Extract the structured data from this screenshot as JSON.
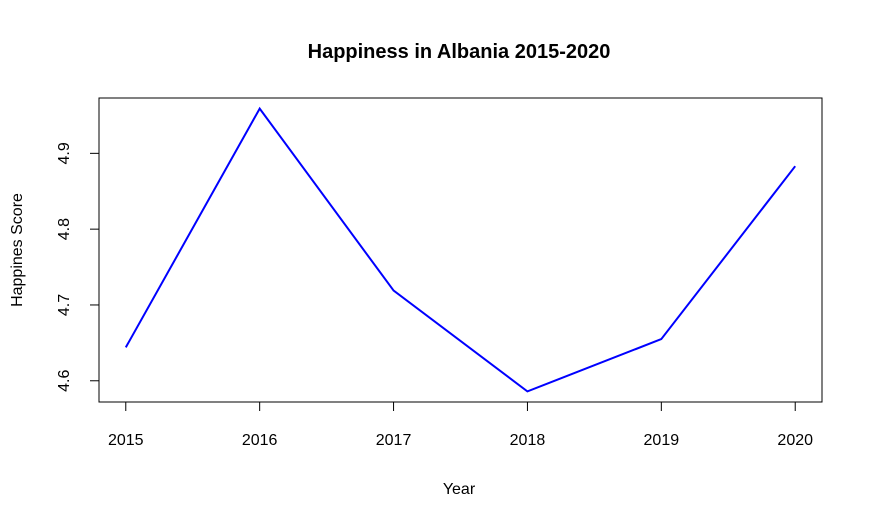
{
  "chart_data": {
    "type": "line",
    "title": "Happiness in Albania 2015-2020",
    "xlabel": "Year",
    "ylabel": "Happines Score",
    "x": [
      2015,
      2016,
      2017,
      2018,
      2019,
      2020
    ],
    "series": [
      {
        "values": [
          4.644,
          4.959,
          4.719,
          4.586,
          4.655,
          4.883
        ]
      }
    ],
    "xticks": [
      "2015",
      "2016",
      "2017",
      "2018",
      "2019",
      "2020"
    ],
    "yticks": [
      "4.6",
      "4.7",
      "4.8",
      "4.9"
    ],
    "xlim": [
      2014.8,
      2020.2
    ],
    "ylim": [
      4.572,
      4.973
    ],
    "grid": false,
    "line_color": "#0000ff"
  }
}
